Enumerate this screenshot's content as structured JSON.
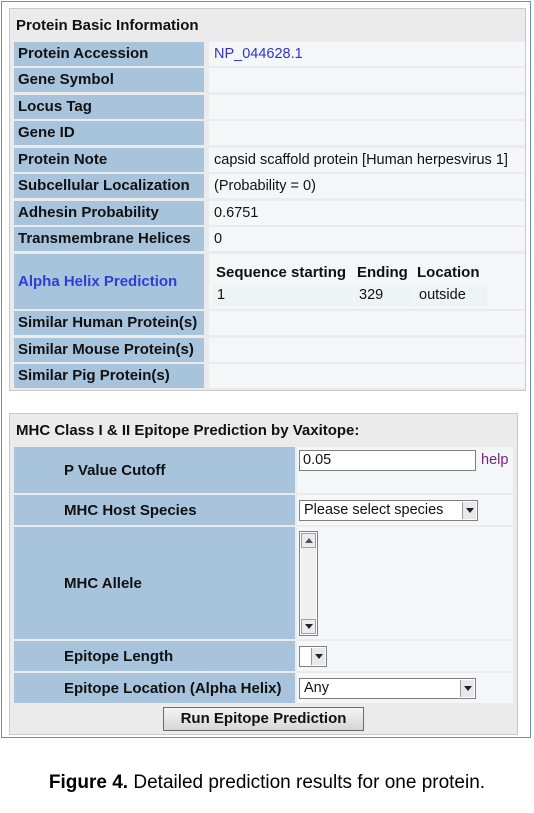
{
  "basic": {
    "title": "Protein Basic Information",
    "rows": [
      {
        "label": "Protein Accession",
        "value": "NP_044628.1"
      },
      {
        "label": "Gene Symbol",
        "value": ""
      },
      {
        "label": "Locus Tag",
        "value": ""
      },
      {
        "label": "Gene ID",
        "value": ""
      },
      {
        "label": "Protein Note",
        "value": "capsid scaffold protein [Human herpesvirus 1]"
      },
      {
        "label": "Subcellular Localization",
        "value": "(Probability = 0)"
      },
      {
        "label": "Adhesin Probability",
        "value": "0.6751"
      },
      {
        "label": "Transmembrane Helices",
        "value": "0"
      }
    ],
    "alpha": {
      "label": "Alpha Helix Prediction",
      "headers": [
        "Sequence starting",
        "Ending",
        "Location"
      ],
      "row": [
        "1",
        "329",
        "outside"
      ]
    },
    "similar": [
      {
        "label": "Similar Human Protein(s)",
        "value": ""
      },
      {
        "label": "Similar Mouse Protein(s)",
        "value": ""
      },
      {
        "label": "Similar Pig Protein(s)",
        "value": ""
      }
    ]
  },
  "mhc": {
    "title": "MHC Class I & II Epitope Prediction by Vaxitope:",
    "p_value_label": "P Value Cutoff",
    "p_value": "0.05",
    "help_label": "help",
    "host_label": "MHC Host Species",
    "host_value": "Please select species",
    "allele_label": "MHC Allele",
    "length_label": "Epitope Length",
    "length_value": "",
    "location_label": "Epitope Location (Alpha Helix)",
    "location_value": "Any",
    "run_label": "Run Epitope Prediction"
  },
  "caption": {
    "prefix": "Figure 4.",
    "text": " Detailed prediction results for one protein."
  },
  "colors": {
    "label_bg": "#a8c3dc",
    "value_bg": "#f3f7f7",
    "panel_bg": "#ebebeb",
    "link": "#3333cc",
    "help": "#7b1f7b"
  }
}
